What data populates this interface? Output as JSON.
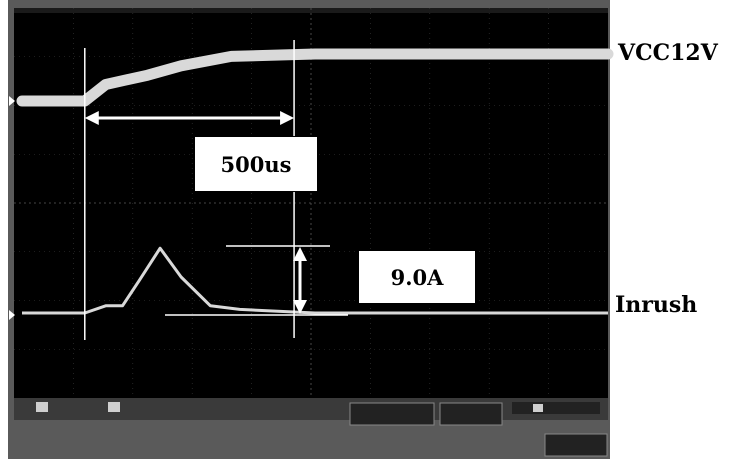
{
  "chart_data": {
    "type": "line",
    "series": [
      {
        "name": "VCC12V",
        "x": [
          0,
          150,
          200,
          300,
          380,
          500,
          700,
          1000,
          1400
        ],
        "y": [
          0,
          0,
          0.35,
          0.55,
          0.75,
          0.95,
          1.0,
          1.0,
          1.0
        ]
      },
      {
        "name": "Inrush",
        "x": [
          0,
          150,
          200,
          240,
          280,
          330,
          380,
          450,
          520,
          700,
          1400
        ],
        "y": [
          0,
          0,
          1.0,
          1.0,
          4.5,
          9.0,
          5.0,
          1.0,
          0.5,
          0,
          0
        ]
      }
    ],
    "annotations": [
      {
        "text": "500us",
        "kind": "time-span",
        "from_x": 150,
        "to_x": 650
      },
      {
        "text": "9.0A",
        "kind": "peak-amplitude",
        "value": 9.0
      }
    ]
  },
  "labels": {
    "vcc": "VCC12V",
    "inrush": "Inrush",
    "time_span": "500us",
    "peak_current": "9.0A"
  },
  "colors": {
    "screen": "#000000",
    "bezel": "#5a5a5a",
    "trace": "#d9d9d9",
    "grid": "#3a3a3a",
    "marker": "#ffffff"
  }
}
